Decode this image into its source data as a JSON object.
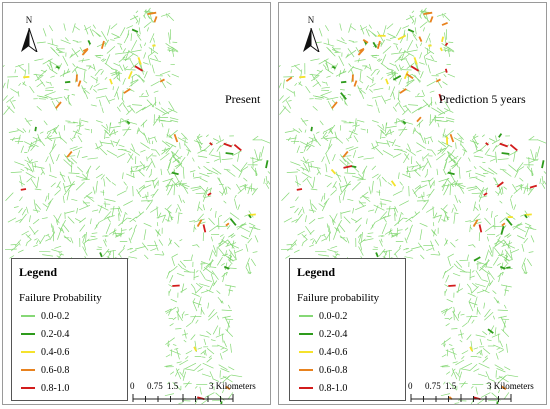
{
  "map": {
    "north_label": "N",
    "colors": {
      "network": "#86d876",
      "c1": "#86d876",
      "c2": "#2e9b1c",
      "c3": "#f5e22c",
      "c4": "#e8821e",
      "c5": "#d21c1c"
    }
  },
  "panels": [
    {
      "map_label": "Present",
      "legend": {
        "title": "Legend",
        "subtitle": "Failure Probability",
        "items": [
          "0.0-0.2",
          "0.2-0.4",
          "0.4-0.6",
          "0.6-0.8",
          "0.8-1.0"
        ]
      },
      "scale": {
        "t0": "0",
        "t1": "0.75",
        "t2": "1.5",
        "t3": "3 Kilometers"
      }
    },
    {
      "map_label": "Prediction 5 years",
      "legend": {
        "title": "Legend",
        "subtitle": "Failure probability",
        "items": [
          "0.0-0.2",
          "0.2-0.4",
          "0.4-0.6",
          "0.6-0.8",
          "0.8-1.0"
        ]
      },
      "scale": {
        "t0": "0",
        "t1": "0.75",
        "t2": "1.5",
        "t3": "3 Kilometers"
      }
    }
  ]
}
